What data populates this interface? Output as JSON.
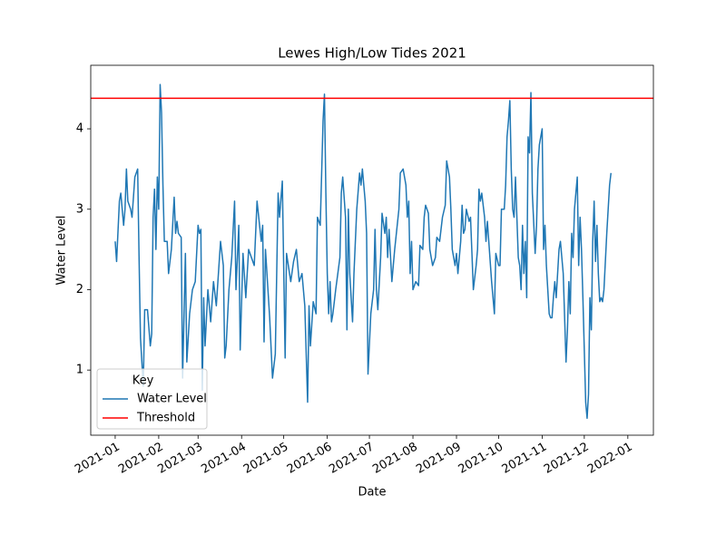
{
  "chart_data": {
    "type": "line",
    "title": "Lewes High/Low Tides 2021",
    "x_label": "Date",
    "y_label": "Water Level",
    "legend_title": "Key",
    "legend_corner": "lower left",
    "x": [
      0,
      1,
      3,
      4,
      5,
      6,
      7,
      8,
      9,
      11,
      12,
      14,
      16,
      17,
      18,
      20,
      21,
      23,
      25,
      26,
      27,
      28,
      29,
      30,
      31,
      32,
      33,
      34,
      35,
      37,
      38,
      40,
      42,
      43,
      44,
      45,
      47,
      48,
      50,
      51,
      53,
      55,
      57,
      59,
      60,
      61,
      62,
      63,
      64,
      66,
      68,
      70,
      72,
      75,
      77,
      78,
      79,
      81,
      83,
      85,
      86,
      88,
      89,
      91,
      93,
      95,
      97,
      99,
      101,
      104,
      105,
      106,
      107,
      110,
      112,
      114,
      116,
      117,
      119,
      121,
      122,
      125,
      127,
      129,
      131,
      133,
      135,
      137,
      138,
      139,
      141,
      143,
      144,
      146,
      148,
      149,
      150,
      151,
      152,
      153,
      154,
      155,
      157,
      160,
      161,
      162,
      164,
      165,
      166,
      167,
      169,
      170,
      172,
      174,
      175,
      176,
      178,
      179,
      180,
      182,
      184,
      185,
      186,
      187,
      189,
      190,
      192,
      193,
      194,
      195,
      197,
      198,
      199,
      202,
      203,
      205,
      207,
      208,
      209,
      210,
      211,
      212,
      214,
      216,
      217,
      219,
      220,
      221,
      223,
      224,
      226,
      228,
      229,
      231,
      233,
      235,
      236,
      238,
      239,
      240,
      242,
      243,
      244,
      246,
      247,
      248,
      249,
      250,
      252,
      253,
      255,
      257,
      258,
      259,
      260,
      261,
      263,
      264,
      265,
      266,
      268,
      270,
      271,
      273,
      274,
      275,
      277,
      278,
      279,
      280,
      281,
      282,
      283,
      284,
      285,
      286,
      287,
      288,
      289,
      290,
      291,
      292,
      293,
      294,
      295,
      296,
      297,
      299,
      300,
      301,
      302,
      304,
      305,
      306,
      307,
      309,
      310,
      311,
      312,
      313,
      314,
      316,
      317,
      319,
      321,
      322,
      323,
      324,
      325,
      326,
      327,
      329,
      330,
      331,
      332,
      333,
      335,
      336,
      337,
      338,
      339,
      340,
      341,
      342,
      343,
      344,
      345,
      346,
      347,
      348,
      350,
      352,
      353
    ],
    "series": [
      {
        "name": "Water Level",
        "color": "#1f77b4",
        "values": [
          2.6,
          2.35,
          3.1,
          3.2,
          3.0,
          2.8,
          3.0,
          3.5,
          3.1,
          3.0,
          2.9,
          3.4,
          3.5,
          2.4,
          1.4,
          0.8,
          1.75,
          1.75,
          1.3,
          1.45,
          2.9,
          3.25,
          2.5,
          3.4,
          3.0,
          4.55,
          4.2,
          3.3,
          2.6,
          2.6,
          2.2,
          2.5,
          3.15,
          2.7,
          2.85,
          2.7,
          2.65,
          0.9,
          2.45,
          1.1,
          1.7,
          2.0,
          2.1,
          2.8,
          2.7,
          2.75,
          0.75,
          1.9,
          1.3,
          2.0,
          1.6,
          2.1,
          1.8,
          2.6,
          2.3,
          1.15,
          1.3,
          2.0,
          2.4,
          3.1,
          2.0,
          2.8,
          1.25,
          2.45,
          1.9,
          2.5,
          2.4,
          2.3,
          3.1,
          2.6,
          2.8,
          1.35,
          2.5,
          1.65,
          0.9,
          1.2,
          3.2,
          2.9,
          3.35,
          1.15,
          2.45,
          2.1,
          2.35,
          2.5,
          2.1,
          2.2,
          1.8,
          0.6,
          1.8,
          1.3,
          1.85,
          1.7,
          2.9,
          2.8,
          4.1,
          4.43,
          3.2,
          2.2,
          1.7,
          2.1,
          1.6,
          1.7,
          2.0,
          2.4,
          3.2,
          3.4,
          2.9,
          1.5,
          3.0,
          2.2,
          1.6,
          2.2,
          3.0,
          3.45,
          3.3,
          3.5,
          3.1,
          2.7,
          0.95,
          1.7,
          2.0,
          2.75,
          2.0,
          1.75,
          2.4,
          2.95,
          2.7,
          2.9,
          2.4,
          2.75,
          2.1,
          2.3,
          2.5,
          3.0,
          3.45,
          3.5,
          3.3,
          2.9,
          3.1,
          2.2,
          2.6,
          2.0,
          2.1,
          2.05,
          2.55,
          2.5,
          2.9,
          3.05,
          2.95,
          2.5,
          2.3,
          2.4,
          2.65,
          2.6,
          2.9,
          3.05,
          3.6,
          3.4,
          3.0,
          2.5,
          2.3,
          2.45,
          2.2,
          2.6,
          3.05,
          2.7,
          2.75,
          3.0,
          2.85,
          2.9,
          2.0,
          2.3,
          2.5,
          3.25,
          3.1,
          3.2,
          2.9,
          2.6,
          2.85,
          2.6,
          2.1,
          1.7,
          2.45,
          2.3,
          2.3,
          3.0,
          3.0,
          3.3,
          3.9,
          4.1,
          4.35,
          3.5,
          3.0,
          2.9,
          3.4,
          2.9,
          2.4,
          2.3,
          2.0,
          2.8,
          2.2,
          2.6,
          1.9,
          3.9,
          3.7,
          4.45,
          3.2,
          2.45,
          2.8,
          3.5,
          3.8,
          4.0,
          2.5,
          2.8,
          2.3,
          1.7,
          1.65,
          1.65,
          1.9,
          2.1,
          1.9,
          2.5,
          2.6,
          2.2,
          1.1,
          1.5,
          2.1,
          1.7,
          2.7,
          2.4,
          3.0,
          3.4,
          2.3,
          2.9,
          2.5,
          1.9,
          0.6,
          0.4,
          0.7,
          1.9,
          1.5,
          2.6,
          3.1,
          2.35,
          2.8,
          2.2,
          1.85,
          1.9,
          1.85,
          2.0,
          2.7,
          3.3,
          3.45
        ]
      }
    ],
    "threshold": {
      "name": "Threshold",
      "color": "#ff0000",
      "value": 4.38
    },
    "xlim": [
      -17.4,
      383.2
    ],
    "xticks": [
      {
        "value": 0,
        "label": "2021-01"
      },
      {
        "value": 31,
        "label": "2021-02"
      },
      {
        "value": 59,
        "label": "2021-03"
      },
      {
        "value": 90,
        "label": "2021-04"
      },
      {
        "value": 120,
        "label": "2021-05"
      },
      {
        "value": 151,
        "label": "2021-06"
      },
      {
        "value": 181,
        "label": "2021-07"
      },
      {
        "value": 212,
        "label": "2021-08"
      },
      {
        "value": 243,
        "label": "2021-09"
      },
      {
        "value": 273,
        "label": "2021-10"
      },
      {
        "value": 304,
        "label": "2021-11"
      },
      {
        "value": 334,
        "label": "2021-12"
      },
      {
        "value": 365,
        "label": "2022-01"
      }
    ],
    "ylim": [
      0.19,
      4.79
    ],
    "yticks": [
      1,
      2,
      3,
      4
    ],
    "grid": false
  }
}
